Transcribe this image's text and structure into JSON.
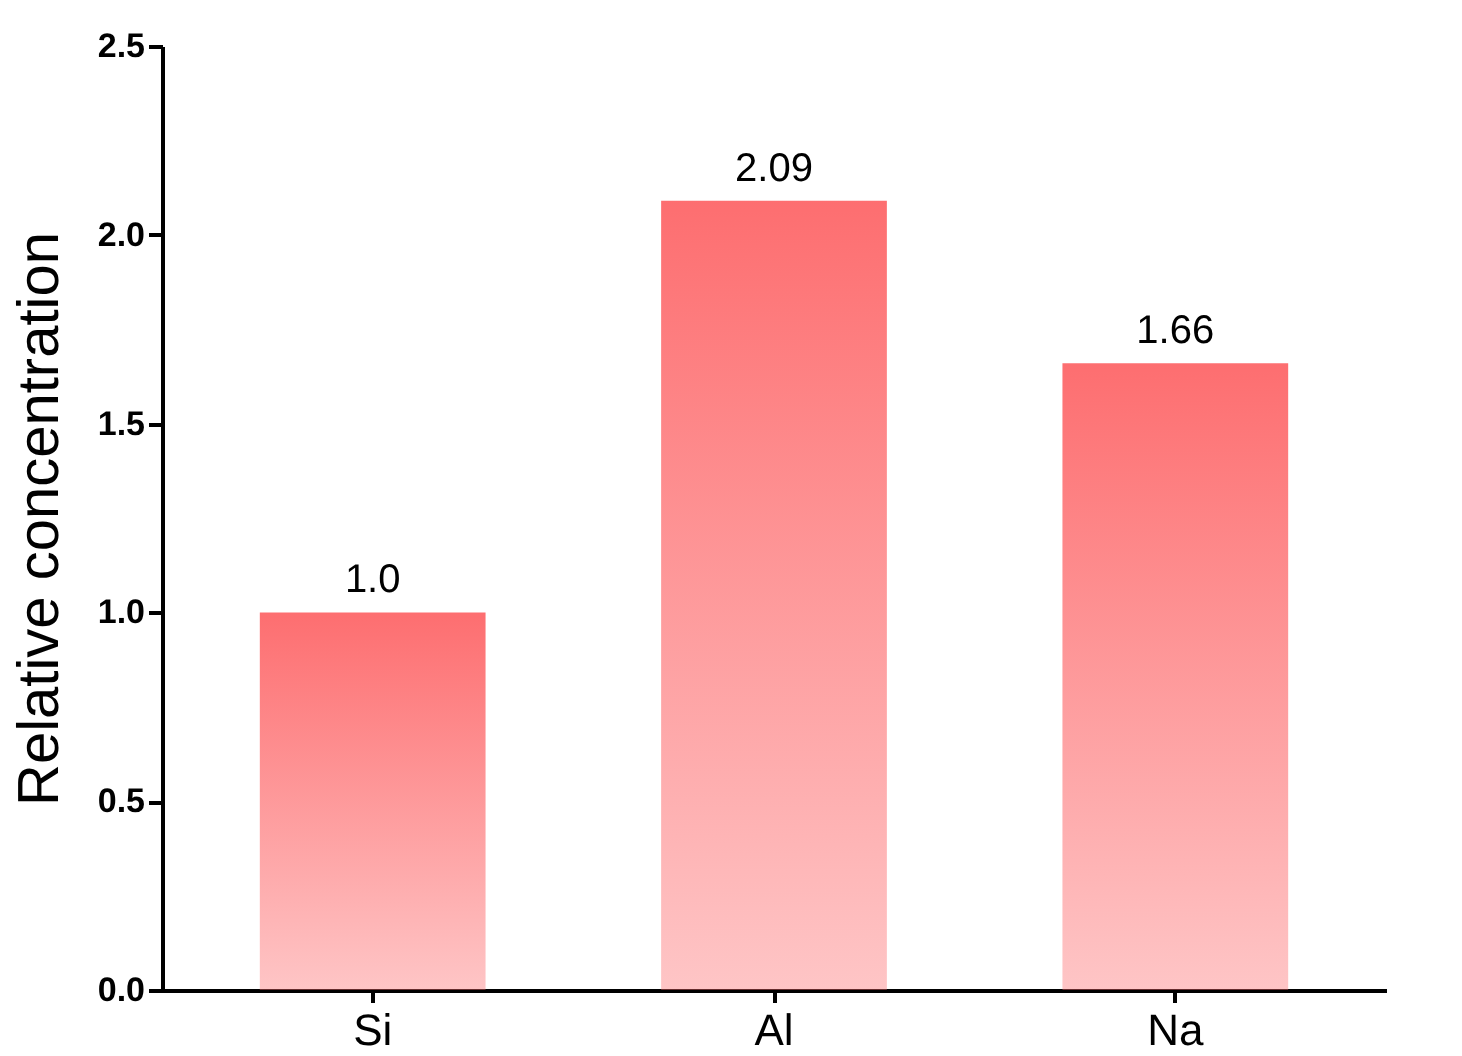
{
  "chart_data": {
    "type": "bar",
    "ylabel": "Relative concentration",
    "categories": [
      "Si",
      "Al",
      "Na"
    ],
    "values": [
      1.0,
      2.09,
      1.66
    ],
    "color": "#fd6e70",
    "value_labels": [
      "1.0",
      "2.09",
      "1.66"
    ],
    "ylim": [
      0,
      2.5
    ],
    "yticks": [
      {
        "value": 0,
        "label": "0.0"
      },
      {
        "value": 0.5,
        "label": "0.5"
      },
      {
        "value": 1,
        "label": "1.0"
      },
      {
        "value": 1.5,
        "label": "1.5"
      },
      {
        "value": 2,
        "label": "2.0"
      },
      {
        "value": 2.5,
        "label": "2.5"
      }
    ],
    "grid": false
  }
}
